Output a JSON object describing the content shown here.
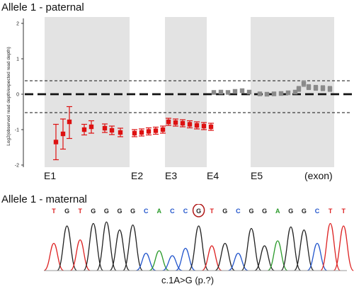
{
  "panel1": {
    "title": "Allele 1 - paternal",
    "ylabel": "Log2(observed read depth/expected read depth)",
    "yticks": [
      "2",
      "1",
      "0",
      "-1",
      "-2"
    ],
    "exon_labels": [
      "E1",
      "E2",
      "E3",
      "E4",
      "E5",
      "(exon)"
    ]
  },
  "panel2": {
    "title": "Allele 1 - maternal",
    "sequence": [
      "T",
      "G",
      "T",
      "G",
      "G",
      "G",
      "G",
      "C",
      "A",
      "C",
      "C",
      "G",
      "T",
      "G",
      "C",
      "G",
      "G",
      "A",
      "G",
      "G",
      "C",
      "T",
      "T"
    ],
    "highlight_base": "G",
    "mutation": "c.1A>G (p.?)"
  },
  "colors": {
    "deleted": "#dd1111",
    "normal": "#8a8a8a",
    "shade": "#e3e3e3",
    "A": "#2a9a2a",
    "C": "#2255cc",
    "G": "#222222",
    "T": "#dd2222",
    "circle": "#b01818"
  },
  "chart_data": {
    "type": "scatter",
    "title": "Allele 1 - paternal",
    "ylabel": "Log2(observed read depth/expected read depth)",
    "xlabel": "(exon)",
    "ylim": [
      -2.2,
      2.2
    ],
    "yticks": [
      2,
      1,
      0,
      -1,
      -2
    ],
    "reference_lines": [
      0.38,
      0,
      -0.52
    ],
    "exons": [
      "E1",
      "E2",
      "E3",
      "E4",
      "E5"
    ],
    "series": [
      {
        "values": [
          {
            "y": -1.35,
            "lo": -1.85,
            "hi": -0.85,
            "exon": "E1"
          },
          {
            "y": -1.12,
            "lo": -1.55,
            "hi": -0.7,
            "exon": "E1"
          },
          {
            "y": -0.78,
            "lo": -1.25,
            "hi": -0.35,
            "exon": "E1"
          },
          {
            "y": -1.0,
            "lo": -1.15,
            "hi": -0.85,
            "exon": "E1"
          },
          {
            "y": -0.92,
            "lo": -1.1,
            "hi": -0.75,
            "exon": "E1"
          },
          {
            "y": -0.96,
            "lo": -1.08,
            "hi": -0.84,
            "exon": "E1"
          },
          {
            "y": -1.02,
            "lo": -1.14,
            "hi": -0.9,
            "exon": "E1"
          },
          {
            "y": -1.08,
            "lo": -1.2,
            "hi": -0.96,
            "exon": "E1"
          },
          {
            "y": -1.1,
            "lo": -1.2,
            "hi": -1.0,
            "exon": "E2"
          },
          {
            "y": -1.08,
            "lo": -1.18,
            "hi": -0.98,
            "exon": "E2"
          },
          {
            "y": -1.05,
            "lo": -1.15,
            "hi": -0.95,
            "exon": "E2"
          },
          {
            "y": -1.03,
            "lo": -1.13,
            "hi": -0.93,
            "exon": "E2"
          },
          {
            "y": -1.0,
            "lo": -1.1,
            "hi": -0.9,
            "exon": "E2"
          },
          {
            "y": -0.78,
            "lo": -0.88,
            "hi": -0.68,
            "exon": "E3"
          },
          {
            "y": -0.8,
            "lo": -0.9,
            "hi": -0.7,
            "exon": "E3"
          },
          {
            "y": -0.82,
            "lo": -0.92,
            "hi": -0.72,
            "exon": "E3"
          },
          {
            "y": -0.85,
            "lo": -0.95,
            "hi": -0.75,
            "exon": "E3"
          },
          {
            "y": -0.88,
            "lo": -0.98,
            "hi": -0.78,
            "exon": "E3"
          },
          {
            "y": -0.9,
            "lo": -1.0,
            "hi": -0.8,
            "exon": "E3"
          },
          {
            "y": -0.92,
            "lo": -1.02,
            "hi": -0.82,
            "exon": "E3"
          }
        ]
      },
      {
        "values": [
          {
            "y": 0.05,
            "lo": 0.0,
            "hi": 0.1,
            "exon": "E4"
          },
          {
            "y": 0.06,
            "lo": 0.01,
            "hi": 0.11,
            "exon": "E4"
          },
          {
            "y": 0.05,
            "lo": 0.0,
            "hi": 0.1,
            "exon": "E4"
          },
          {
            "y": 0.08,
            "lo": 0.03,
            "hi": 0.13,
            "exon": "E4"
          },
          {
            "y": 0.1,
            "lo": 0.05,
            "hi": 0.15,
            "exon": "E4"
          },
          {
            "y": 0.06,
            "lo": 0.01,
            "hi": 0.11,
            "exon": "E4"
          },
          {
            "y": 0.01,
            "lo": -0.04,
            "hi": 0.06,
            "exon": "E5"
          },
          {
            "y": 0.0,
            "lo": -0.05,
            "hi": 0.05,
            "exon": "E5"
          },
          {
            "y": 0.01,
            "lo": -0.04,
            "hi": 0.06,
            "exon": "E5"
          },
          {
            "y": 0.02,
            "lo": -0.03,
            "hi": 0.07,
            "exon": "E5"
          },
          {
            "y": 0.04,
            "lo": -0.01,
            "hi": 0.09,
            "exon": "E5"
          },
          {
            "y": 0.06,
            "lo": 0.01,
            "hi": 0.11,
            "exon": "E5"
          },
          {
            "y": 0.15,
            "lo": 0.08,
            "hi": 0.22,
            "exon": "E5"
          },
          {
            "y": 0.3,
            "lo": 0.22,
            "hi": 0.38,
            "exon": "E5"
          },
          {
            "y": 0.2,
            "lo": 0.13,
            "hi": 0.27,
            "exon": "E5"
          },
          {
            "y": 0.18,
            "lo": 0.11,
            "hi": 0.25,
            "exon": "E5"
          },
          {
            "y": 0.17,
            "lo": 0.1,
            "hi": 0.24,
            "exon": "E5"
          },
          {
            "y": 0.15,
            "lo": 0.08,
            "hi": 0.22,
            "exon": "E5"
          }
        ]
      }
    ]
  }
}
